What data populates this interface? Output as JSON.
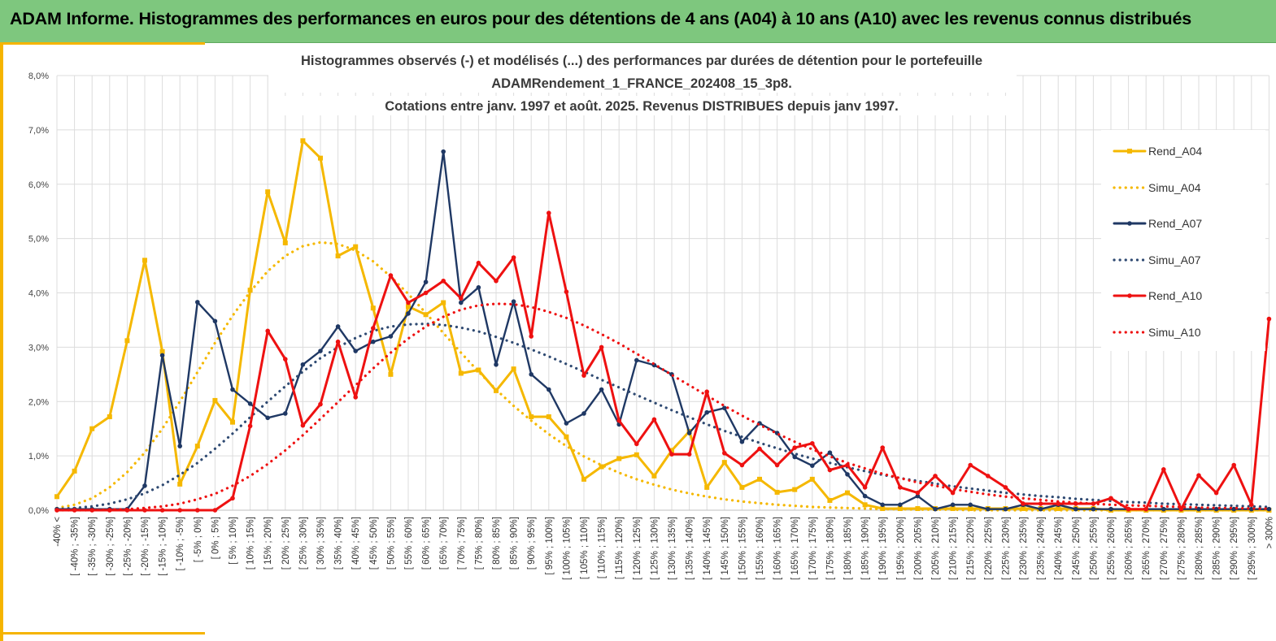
{
  "header": {
    "title": "ADAM Informe. Histogrammes des performances en euros pour des détentions de 4 ans (A04) à 10 ans (A10) avec les revenus connus distribués"
  },
  "chart_data": {
    "type": "line",
    "title": [
      "Histogrammes observés (-) et modélisés (...) des performances  par durées de détention pour le portefeuille",
      "ADAMRendement_1_FRANCE_202408_15_3p8.",
      "Cotations entre janv. 1997 et août. 2025. Revenus DISTRIBUES depuis janv 1997."
    ],
    "xlabel": "",
    "ylabel": "",
    "ylim": [
      0,
      8
    ],
    "yticks": [
      "0,0%",
      "1,0%",
      "2,0%",
      "3,0%",
      "4,0%",
      "5,0%",
      "6,0%",
      "7,0%",
      "8,0%"
    ],
    "grid": true,
    "legend_position": "right",
    "categories": [
      "-40% <",
      "[ -40% ; -35%]",
      "[ -35% ; -30%]",
      "[ -30% ; -25%]",
      "[ -25% ; -20%]",
      "[ -20% ; -15%]",
      "[ -15% ; -10%]",
      "[ -10% ; -5%]",
      "[ -5% ; 0%]",
      "[ 0% ; 5%]",
      "[ 5% ; 10%]",
      "[ 10% ; 15%]",
      "[ 15% ; 20%]",
      "[ 20% ; 25%]",
      "[ 25% ; 30%]",
      "[ 30% ; 35%]",
      "[ 35% ; 40%]",
      "[ 40% ; 45%]",
      "[ 45% ; 50%]",
      "[ 50% ; 55%]",
      "[ 55% ; 60%]",
      "[ 60% ; 65%]",
      "[ 65% ; 70%]",
      "[ 70% ; 75%]",
      "[ 75% ; 80%]",
      "[ 80% ; 85%]",
      "[ 85% ; 90%]",
      "[ 90% ; 95%]",
      "[ 95% ; 100%]",
      "[ 100% ; 105%]",
      "[ 105% ; 110%]",
      "[ 110% ; 115%]",
      "[ 115% ; 120%]",
      "[ 120% ; 125%]",
      "[ 125% ; 130%]",
      "[ 130% ; 135%]",
      "[ 135% ; 140%]",
      "[ 140% ; 145%]",
      "[ 145% ; 150%]",
      "[ 150% ; 155%]",
      "[ 155% ; 160%]",
      "[ 160% ; 165%]",
      "[ 165% ; 170%]",
      "[ 170% ; 175%]",
      "[ 175% ; 180%]",
      "[ 180% ; 185%]",
      "[ 185% ; 190%]",
      "[ 190% ; 195%]",
      "[ 195% ; 200%]",
      "[ 200% ; 205%]",
      "[ 205% ; 210%]",
      "[ 210% ; 215%]",
      "[ 215% ; 220%]",
      "[ 220% ; 225%]",
      "[ 225% ; 230%]",
      "[ 230% ; 235%]",
      "[ 235% ; 240%]",
      "[ 240% ; 245%]",
      "[ 245% ; 250%]",
      "[ 250% ; 255%]",
      "[ 255% ; 260%]",
      "[ 260% ; 265%]",
      "[ 265% ; 270%]",
      "[ 270% ; 275%]",
      "[ 275% ; 280%]",
      "[ 280% ; 285%]",
      "[ 285% ; 290%]",
      "[ 290% ; 295%]",
      "[ 295% ; 300%]",
      "> 300%"
    ],
    "series": [
      {
        "name": "Rend_A04",
        "style": "solid",
        "marker": "square",
        "color": "#f5b800",
        "values": [
          0.25,
          0.72,
          1.5,
          1.72,
          3.12,
          4.6,
          2.92,
          0.48,
          1.18,
          2.02,
          1.62,
          4.05,
          5.86,
          4.92,
          6.8,
          6.48,
          4.68,
          4.85,
          3.72,
          2.5,
          3.75,
          3.6,
          3.82,
          2.52,
          2.58,
          2.2,
          2.6,
          1.72,
          1.72,
          1.35,
          0.57,
          0.8,
          0.95,
          1.02,
          0.63,
          1.1,
          1.45,
          0.42,
          0.88,
          0.42,
          0.57,
          0.33,
          0.38,
          0.57,
          0.18,
          0.32,
          0.1,
          0.03,
          0.03,
          0.03,
          0.03,
          0.03,
          0.03,
          0.03,
          0.03,
          0.03,
          0.03,
          0.03,
          0.03,
          0.03,
          0.0,
          0.0,
          0.0,
          0.0,
          0.0,
          0.0,
          0.0,
          0.0,
          0.0,
          0.0
        ]
      },
      {
        "name": "Simu_A04",
        "style": "dotted",
        "color": "#f5b800",
        "values": [
          0.04,
          0.1,
          0.22,
          0.42,
          0.7,
          1.06,
          1.5,
          2.0,
          2.54,
          3.08,
          3.58,
          4.02,
          4.4,
          4.68,
          4.86,
          4.93,
          4.9,
          4.78,
          4.58,
          4.3,
          3.98,
          3.63,
          3.26,
          2.9,
          2.55,
          2.22,
          1.92,
          1.65,
          1.4,
          1.18,
          0.99,
          0.83,
          0.69,
          0.57,
          0.47,
          0.38,
          0.31,
          0.25,
          0.2,
          0.16,
          0.13,
          0.1,
          0.08,
          0.06,
          0.05,
          0.04,
          0.03,
          0.02,
          0.02,
          0.01,
          0.01,
          0.01,
          0.0,
          0.0,
          0.0,
          0.0,
          0.0,
          0.0,
          0.0,
          0.0,
          0.0,
          0.0,
          0.0,
          0.0,
          0.0,
          0.0,
          0.0,
          0.0,
          0.0,
          0.0
        ]
      },
      {
        "name": "Rend_A07",
        "style": "solid",
        "marker": "circle",
        "color": "#1f3864",
        "values": [
          0.02,
          0.02,
          0.02,
          0.02,
          0.02,
          0.45,
          2.85,
          1.18,
          3.83,
          3.48,
          2.22,
          1.96,
          1.7,
          1.78,
          2.68,
          2.93,
          3.38,
          2.93,
          3.1,
          3.2,
          3.62,
          4.2,
          6.6,
          3.82,
          4.1,
          2.68,
          3.84,
          2.5,
          2.22,
          1.6,
          1.78,
          2.22,
          1.58,
          2.76,
          2.67,
          2.5,
          1.42,
          1.8,
          1.88,
          1.26,
          1.6,
          1.42,
          0.98,
          0.82,
          1.06,
          0.66,
          0.26,
          0.1,
          0.1,
          0.26,
          0.02,
          0.1,
          0.1,
          0.02,
          0.02,
          0.1,
          0.02,
          0.1,
          0.02,
          0.02,
          0.02,
          0.02,
          0.02,
          0.02,
          0.02,
          0.02,
          0.02,
          0.02,
          0.02,
          0.02
        ]
      },
      {
        "name": "Simu_A07",
        "style": "dotted",
        "color": "#2f4a72",
        "values": [
          0.02,
          0.04,
          0.07,
          0.12,
          0.2,
          0.31,
          0.46,
          0.65,
          0.87,
          1.13,
          1.41,
          1.71,
          2.0,
          2.28,
          2.55,
          2.8,
          3.0,
          3.17,
          3.3,
          3.38,
          3.42,
          3.43,
          3.41,
          3.36,
          3.29,
          3.19,
          3.08,
          2.96,
          2.83,
          2.69,
          2.55,
          2.4,
          2.26,
          2.12,
          1.98,
          1.84,
          1.71,
          1.58,
          1.46,
          1.35,
          1.24,
          1.14,
          1.04,
          0.95,
          0.87,
          0.79,
          0.72,
          0.65,
          0.59,
          0.54,
          0.49,
          0.44,
          0.4,
          0.36,
          0.32,
          0.29,
          0.26,
          0.24,
          0.21,
          0.19,
          0.17,
          0.15,
          0.14,
          0.12,
          0.11,
          0.1,
          0.09,
          0.08,
          0.07,
          0.06
        ]
      },
      {
        "name": "Rend_A10",
        "style": "solid",
        "marker": "circle",
        "color": "#ee1111",
        "values": [
          0.0,
          0.0,
          0.0,
          0.0,
          0.0,
          0.0,
          0.0,
          0.0,
          0.0,
          0.0,
          0.22,
          1.55,
          3.3,
          2.78,
          1.56,
          1.95,
          3.1,
          2.08,
          3.35,
          4.32,
          3.82,
          4.0,
          4.22,
          3.9,
          4.55,
          4.22,
          4.65,
          3.2,
          5.47,
          4.02,
          2.48,
          3.0,
          1.65,
          1.22,
          1.67,
          1.03,
          1.03,
          2.18,
          1.05,
          0.83,
          1.13,
          0.83,
          1.15,
          1.23,
          0.74,
          0.83,
          0.42,
          1.15,
          0.42,
          0.32,
          0.63,
          0.32,
          0.83,
          0.63,
          0.42,
          0.12,
          0.12,
          0.12,
          0.12,
          0.12,
          0.22,
          0.02,
          0.02,
          0.75,
          0.02,
          0.64,
          0.32,
          0.83,
          0.1,
          3.52
        ]
      },
      {
        "name": "Simu_A10",
        "style": "dotted",
        "color": "#ee1111",
        "values": [
          0.0,
          0.0,
          0.0,
          0.01,
          0.02,
          0.04,
          0.07,
          0.12,
          0.2,
          0.3,
          0.45,
          0.63,
          0.85,
          1.1,
          1.38,
          1.68,
          1.99,
          2.3,
          2.61,
          2.9,
          3.16,
          3.38,
          3.56,
          3.69,
          3.77,
          3.8,
          3.79,
          3.74,
          3.65,
          3.54,
          3.4,
          3.24,
          3.07,
          2.88,
          2.69,
          2.49,
          2.3,
          2.11,
          1.92,
          1.74,
          1.57,
          1.41,
          1.26,
          1.12,
          0.99,
          0.87,
          0.77,
          0.67,
          0.59,
          0.51,
          0.45,
          0.39,
          0.34,
          0.29,
          0.25,
          0.22,
          0.19,
          0.16,
          0.14,
          0.12,
          0.1,
          0.09,
          0.08,
          0.07,
          0.06,
          0.05,
          0.04,
          0.04,
          0.03,
          0.03
        ]
      }
    ]
  }
}
